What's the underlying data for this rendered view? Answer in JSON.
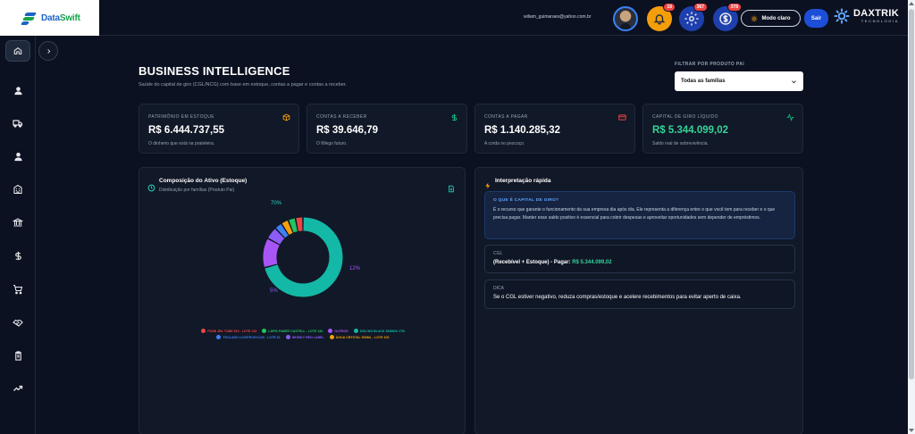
{
  "header": {
    "logo": {
      "brand_a": "Data",
      "brand_b": "Swift"
    },
    "user_email": "wiliam_guimaraes@yahoo.com.br",
    "notifications": {
      "bell_count": "19",
      "gear_count": "367",
      "money_count": "378"
    },
    "mode_label": "Modo claro",
    "exit_label": "Sair",
    "company": {
      "name": "DAXTRIK",
      "tagline": "TECNOLOGIA"
    }
  },
  "sidebar": {
    "items": [
      "home-icon",
      "user-icon",
      "truck-icon",
      "person-icon",
      "building-icon",
      "bank-icon",
      "dollar-icon",
      "cart-icon",
      "handshake-icon",
      "clipboard-icon",
      "trend-icon"
    ]
  },
  "page": {
    "title": "BUSINESS INTELLIGENCE",
    "subtitle": "Saúde do capital de giro (CGL/NCG) com base em estoque, contas a pagar e contas a receber.",
    "filter": {
      "label": "FILTRAR POR PRODUTO PAI",
      "value": "Todas as famílias"
    }
  },
  "kpis": [
    {
      "label": "PATRIMÔNIO EM ESTOQUE",
      "value": "R$ 6.444.737,55",
      "desc": "O dinheiro que está na prateleira.",
      "icon": "box-icon",
      "color": "#f59e0b",
      "value_color": "#ffffff"
    },
    {
      "label": "CONTAS A RECEBER",
      "value": "R$ 39.646,79",
      "desc": "O fôlego futuro.",
      "icon": "dollar-icon",
      "color": "#10b981",
      "value_color": "#ffffff"
    },
    {
      "label": "CONTAS A PAGAR",
      "value": "R$ 1.140.285,32",
      "desc": "A corda no pescoço.",
      "icon": "card-icon",
      "color": "#ef4444",
      "value_color": "#ffffff"
    },
    {
      "label": "CAPITAL DE GIRO LÍQUIDO",
      "value": "R$ 5.344.099,02",
      "desc": "Saldo real de sobrevivência.",
      "icon": "pulse-icon",
      "color": "#10b981",
      "value_color": "#34d399"
    }
  ],
  "composition": {
    "title": "Composição do Ativo (Estoque)",
    "subtitle": "Distribuição por famílias (Produto Pai).",
    "labels": {
      "main": "70%",
      "second": "12%",
      "third": "5%"
    }
  },
  "chart_data": {
    "type": "pie",
    "title": "Composição do Ativo (Estoque)",
    "slices": [
      {
        "name": "SSD WD BLACK SN850X 1TB",
        "value": 70,
        "color": "#14b8a6"
      },
      {
        "name": "OUTROS",
        "value": 12,
        "color": "#a855f7"
      },
      {
        "name": "WHISKY RED LABEL",
        "value": 5,
        "color": "#8b5cf6"
      },
      {
        "name": "TECLADO LOGITECH K120 - LOTE 61",
        "value": 3,
        "color": "#3b82f6"
      },
      {
        "name": "ÁGUA CRYSTAL 500ML - LOTE 100",
        "value": 3,
        "color": "#f59e0b"
      },
      {
        "name": "LÁPIS FABER CASTELL - LOTE 136",
        "value": 3,
        "color": "#22c55e"
      },
      {
        "name": "FONE JBL TUNE 510 - LOTE 115",
        "value": 3,
        "color": "#ef4444"
      }
    ],
    "legend_order": [
      {
        "name": "FONE JBL TUNE 510 - LOTE 115",
        "color": "#ef4444"
      },
      {
        "name": "LÁPIS FABER CASTELL - LOTE 136",
        "color": "#22c55e"
      },
      {
        "name": "OUTROS",
        "color": "#a855f7"
      },
      {
        "name": "SSD WD BLACK SN850X 1TB",
        "color": "#14b8a6"
      },
      {
        "name": "TECLADO LOGITECH K120 - LOTE 61",
        "color": "#3b82f6"
      },
      {
        "name": "WHISKY RED LABEL",
        "color": "#8b5cf6"
      },
      {
        "name": "ÁGUA CRYSTAL 500ML - LOTE 100",
        "color": "#f59e0b"
      }
    ],
    "legend_placement": "bottom"
  },
  "interpretation": {
    "title": "Interpretação rápida",
    "what_title": "O QUE É CAPITAL DE GIRO?",
    "what_text": "É o recurso que garante o funcionamento da sua empresa dia após dia. Ele representa a diferença entre o que você tem para receber e o que precisa pagar. Manter esse saldo positivo é essencial para cobrir despesas e aproveitar oportunidades sem depender de empréstimos.",
    "cgl_label": "CGL",
    "cgl_formula": "(Recebível + Estoque) - Pagar: ",
    "cgl_value": "R$ 5.344.099,02",
    "tip_label": "DICA",
    "tip_text": "Se o CGL estiver negativo, reduza compras/estoque e acelere recebimentos para evitar aperto de caixa."
  }
}
